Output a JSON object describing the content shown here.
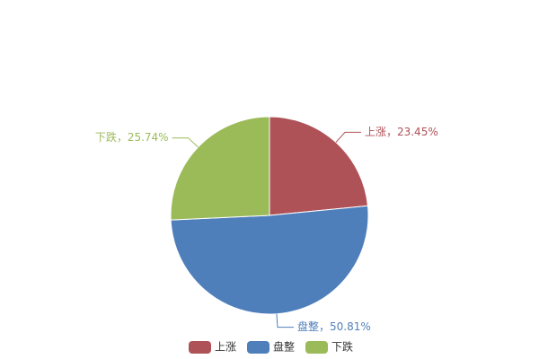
{
  "chart_data": {
    "type": "pie",
    "categories": [
      "上涨",
      "盘整",
      "下跌"
    ],
    "values": [
      23.45,
      50.81,
      25.74
    ],
    "value_labels": [
      "上涨，23.45%",
      "盘整，50.81%",
      "下跌，25.74%"
    ],
    "colors": [
      "#ae5258",
      "#4f7fbb",
      "#9bbb59"
    ],
    "legend": "bottom"
  }
}
